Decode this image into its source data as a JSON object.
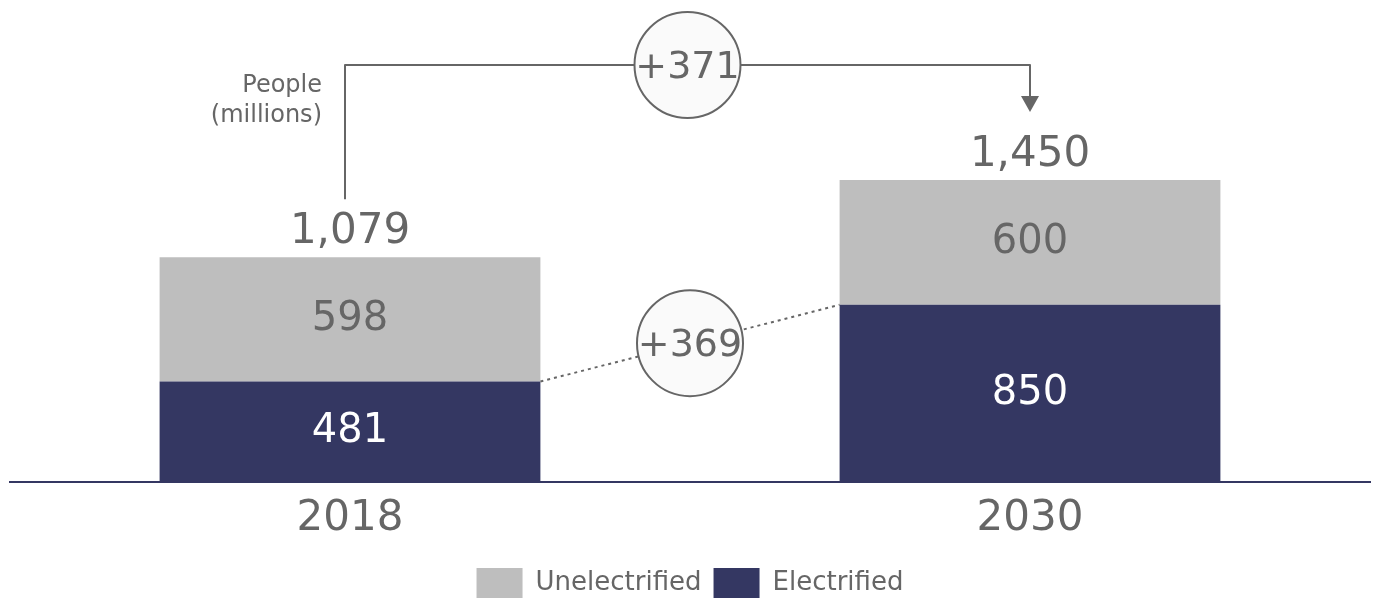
{
  "chart_data": {
    "type": "bar",
    "stacked": true,
    "ylabel": "People (millions)",
    "categories": [
      "2018",
      "2030"
    ],
    "series": [
      {
        "name": "Electrified",
        "color": "#343762",
        "values": [
          481,
          850
        ]
      },
      {
        "name": "Unelectrified",
        "color": "#bebebe",
        "values": [
          598,
          600
        ]
      }
    ],
    "tick_labels": "x",
    "data_labels": true,
    "totals": [
      "1,079",
      "1,450"
    ],
    "grid": false,
    "legend": "bottom",
    "annotations": [
      "+371",
      "+369"
    ]
  }
}
